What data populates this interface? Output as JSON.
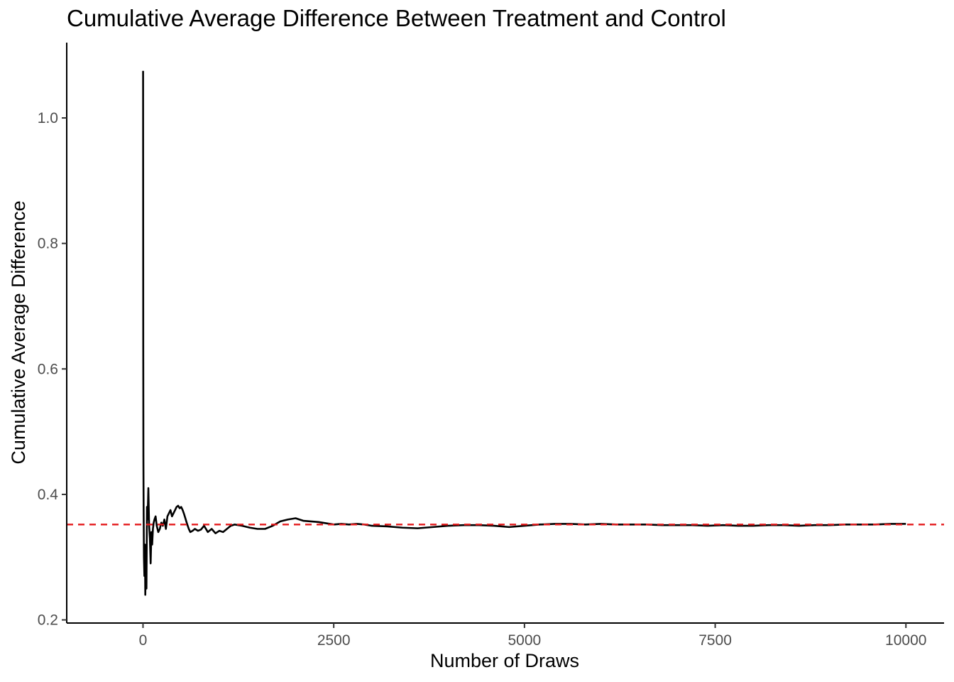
{
  "chart_data": {
    "type": "line",
    "title": "Cumulative Average Difference Between Treatment and Control",
    "xlabel": "Number of Draws",
    "ylabel": "Cumulative Average Difference",
    "xlim": [
      -1000,
      10500
    ],
    "ylim": [
      0.195,
      1.12
    ],
    "x_ticks": [
      0,
      2500,
      5000,
      7500,
      10000
    ],
    "x_tick_labels": [
      "0",
      "2500",
      "5000",
      "7500",
      "10000"
    ],
    "y_ticks": [
      0.2,
      0.4,
      0.6,
      0.8,
      1.0
    ],
    "y_tick_labels": [
      "0.2",
      "0.4",
      "0.6",
      "0.8",
      "1.0"
    ],
    "grid": false,
    "reference_line": {
      "y": 0.352,
      "color": "#e41a1c",
      "style": "dashed"
    },
    "series": [
      {
        "color": "#000000",
        "x": [
          1,
          3,
          5,
          8,
          12,
          18,
          25,
          30,
          38,
          45,
          52,
          60,
          70,
          80,
          90,
          100,
          110,
          120,
          130,
          140,
          150,
          165,
          180,
          200,
          220,
          240,
          260,
          280,
          300,
          320,
          340,
          360,
          380,
          400,
          420,
          440,
          460,
          480,
          500,
          520,
          540,
          560,
          580,
          600,
          620,
          650,
          680,
          720,
          760,
          800,
          850,
          900,
          950,
          1000,
          1050,
          1100,
          1150,
          1200,
          1300,
          1400,
          1500,
          1600,
          1700,
          1800,
          1900,
          2000,
          2100,
          2200,
          2300,
          2400,
          2500,
          2600,
          2700,
          2800,
          2900,
          3000,
          3200,
          3400,
          3600,
          3800,
          4000,
          4200,
          4400,
          4600,
          4800,
          5000,
          5200,
          5400,
          5600,
          5800,
          6000,
          6200,
          6400,
          6600,
          6800,
          7000,
          7200,
          7400,
          7600,
          7800,
          8000,
          8200,
          8400,
          8600,
          8800,
          9000,
          9200,
          9400,
          9600,
          9800,
          10000
        ],
        "values": [
          1.075,
          0.64,
          0.46,
          0.375,
          0.3,
          0.27,
          0.32,
          0.24,
          0.3,
          0.25,
          0.38,
          0.36,
          0.41,
          0.35,
          0.33,
          0.29,
          0.34,
          0.32,
          0.345,
          0.355,
          0.36,
          0.365,
          0.35,
          0.34,
          0.345,
          0.355,
          0.35,
          0.36,
          0.345,
          0.365,
          0.37,
          0.375,
          0.365,
          0.37,
          0.375,
          0.38,
          0.382,
          0.378,
          0.38,
          0.375,
          0.368,
          0.36,
          0.352,
          0.345,
          0.34,
          0.342,
          0.345,
          0.342,
          0.344,
          0.35,
          0.34,
          0.345,
          0.338,
          0.342,
          0.34,
          0.345,
          0.35,
          0.352,
          0.35,
          0.347,
          0.345,
          0.345,
          0.35,
          0.357,
          0.36,
          0.362,
          0.358,
          0.357,
          0.356,
          0.354,
          0.352,
          0.353,
          0.352,
          0.353,
          0.352,
          0.35,
          0.349,
          0.347,
          0.346,
          0.348,
          0.35,
          0.351,
          0.351,
          0.35,
          0.348,
          0.35,
          0.352,
          0.353,
          0.353,
          0.352,
          0.353,
          0.352,
          0.352,
          0.352,
          0.351,
          0.351,
          0.351,
          0.35,
          0.351,
          0.35,
          0.35,
          0.351,
          0.351,
          0.35,
          0.351,
          0.351,
          0.352,
          0.352,
          0.352,
          0.353,
          0.353
        ]
      }
    ]
  }
}
